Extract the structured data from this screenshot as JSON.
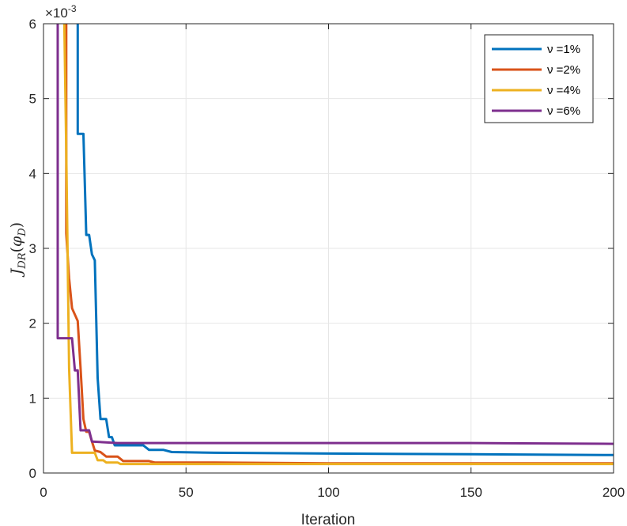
{
  "chart_data": {
    "type": "line",
    "xlabel": "Iteration",
    "ylabel_base": "J",
    "ylabel_sub": "DR",
    "ylabel_arg_base": "φ",
    "ylabel_arg_sub": "D",
    "exponent_label": "×10",
    "exponent_power": "-3",
    "xlim": [
      0,
      200
    ],
    "ylim": [
      0,
      0.006
    ],
    "grid": true,
    "legend_placement": "top-right",
    "x_ticks": [
      0,
      50,
      100,
      150,
      200
    ],
    "x_tick_labels": [
      "0",
      "50",
      "100",
      "150",
      "200"
    ],
    "y_ticks": [
      0,
      0.001,
      0.002,
      0.003,
      0.004,
      0.005,
      0.006
    ],
    "y_tick_labels": [
      "0",
      "1",
      "2",
      "3",
      "4",
      "5",
      "6"
    ],
    "series": [
      {
        "name": "ν =1%",
        "color": "#0072BD",
        "points": [
          [
            12,
            0.0068
          ],
          [
            12,
            0.00453
          ],
          [
            14,
            0.00453
          ],
          [
            14,
            0.00453
          ],
          [
            15,
            0.00318
          ],
          [
            16,
            0.00318
          ],
          [
            17,
            0.00292
          ],
          [
            18,
            0.00284
          ],
          [
            19,
            0.00127
          ],
          [
            20,
            0.00072
          ],
          [
            22,
            0.00072
          ],
          [
            23,
            0.00048
          ],
          [
            24,
            0.00048
          ],
          [
            25,
            0.00037
          ],
          [
            35,
            0.00037
          ],
          [
            37,
            0.00031
          ],
          [
            42,
            0.00031
          ],
          [
            45,
            0.00028
          ],
          [
            60,
            0.00027
          ],
          [
            100,
            0.00026
          ],
          [
            150,
            0.00025
          ],
          [
            200,
            0.00024
          ]
        ]
      },
      {
        "name": "ν =2%",
        "color": "#D95319",
        "points": [
          [
            8,
            0.0068
          ],
          [
            8,
            0.0032
          ],
          [
            9,
            0.0026
          ],
          [
            10,
            0.0022
          ],
          [
            12,
            0.00203
          ],
          [
            13,
            0.0014
          ],
          [
            14,
            0.00072
          ],
          [
            15,
            0.00055
          ],
          [
            16,
            0.00055
          ],
          [
            17,
            0.00042
          ],
          [
            18,
            0.0003
          ],
          [
            20,
            0.00028
          ],
          [
            22,
            0.00022
          ],
          [
            26,
            0.00022
          ],
          [
            28,
            0.00016
          ],
          [
            37,
            0.00016
          ],
          [
            39,
            0.00014
          ],
          [
            60,
            0.00014
          ],
          [
            100,
            0.00013
          ],
          [
            150,
            0.00013
          ],
          [
            200,
            0.00013
          ]
        ]
      },
      {
        "name": "ν =4%",
        "color": "#EDB120",
        "points": [
          [
            7,
            0.0068
          ],
          [
            8,
            0.0043
          ],
          [
            9,
            0.0014
          ],
          [
            10,
            0.00027
          ],
          [
            18,
            0.00027
          ],
          [
            19,
            0.00017
          ],
          [
            21,
            0.00017
          ],
          [
            22,
            0.00014
          ],
          [
            26,
            0.00014
          ],
          [
            27,
            0.00012
          ],
          [
            50,
            0.00012
          ],
          [
            100,
            0.00012
          ],
          [
            150,
            0.00012
          ],
          [
            200,
            0.00012
          ]
        ]
      },
      {
        "name": "ν =6%",
        "color": "#7E2F8E",
        "points": [
          [
            5,
            0.0068
          ],
          [
            5,
            0.0018
          ],
          [
            10,
            0.0018
          ],
          [
            11,
            0.00137
          ],
          [
            12,
            0.00137
          ],
          [
            13,
            0.00057
          ],
          [
            16,
            0.00057
          ],
          [
            17,
            0.00042
          ],
          [
            26,
            0.0004
          ],
          [
            50,
            0.0004
          ],
          [
            100,
            0.0004
          ],
          [
            150,
            0.0004
          ],
          [
            200,
            0.00039
          ]
        ]
      }
    ]
  }
}
